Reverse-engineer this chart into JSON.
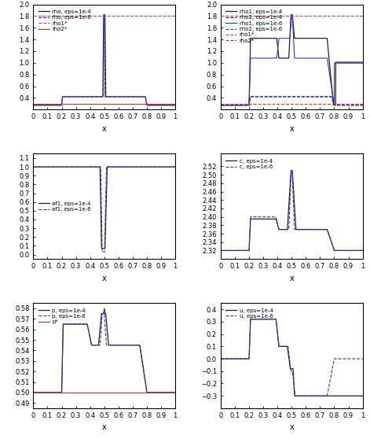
{
  "fig_width": 4.71,
  "fig_height": 5.58,
  "dpi": 100,
  "subplot_rows": 3,
  "subplot_cols": 2,
  "x_label": "x",
  "x_range": [
    0,
    1
  ],
  "panel1": {
    "ylabel": "",
    "ylim": [
      0.2,
      2.05
    ],
    "yticks": [
      0.4,
      0.6,
      0.8,
      1.0,
      1.2,
      1.4,
      1.6,
      1.8,
      2.0
    ],
    "legend": [
      "rho, eps=1e-4",
      "rho, eps=1e-6",
      "rho1*",
      "rho2*"
    ],
    "legend_colors": [
      "#333333",
      "#3333cc",
      "#cc3399",
      "#cc3333"
    ],
    "legend_styles": [
      "-",
      "--",
      "--",
      "-"
    ],
    "hlines": [
      1.8,
      0.3
    ],
    "hline_colors": [
      "#cc3399",
      "#cc3333"
    ],
    "hline_styles": [
      "--",
      "-"
    ]
  },
  "panel2": {
    "ylabel": "",
    "ylim": [
      0.2,
      2.05
    ],
    "yticks": [
      0.4,
      0.6,
      0.8,
      1.0,
      1.2,
      1.4,
      1.6,
      1.8,
      2.0
    ],
    "legend": [
      "rho1, eps=1e-4",
      "rho2, eps=1e-4",
      "rho1, eps=1e-6",
      "rho2, eps=1e-6",
      "rho1*",
      "rho2*"
    ],
    "legend_colors": [
      "#333333",
      "#333333",
      "#3333cc",
      "#3333cc",
      "#cc3399",
      "#cc3333"
    ],
    "legend_styles": [
      "-",
      "--",
      "-",
      "--",
      "--",
      "--"
    ],
    "hlines": [
      1.8,
      0.3
    ],
    "hline_colors": [
      "#cc3399",
      "#cc3333"
    ],
    "hline_styles": [
      "--",
      "--"
    ]
  },
  "panel3": {
    "ylabel": "",
    "ylim": [
      -0.05,
      1.15
    ],
    "yticks": [
      0.0,
      0.1,
      0.2,
      0.3,
      0.4,
      0.5,
      0.6,
      0.7,
      0.8,
      0.9,
      1.0,
      1.1
    ],
    "legend": [
      "af1, eps=1e-4",
      "af1, eps=1e-6"
    ],
    "legend_colors": [
      "#333333",
      "#3333cc"
    ],
    "legend_styles": [
      "-",
      "--"
    ]
  },
  "panel4": {
    "ylabel": "",
    "ylim": [
      2.3,
      2.55
    ],
    "yticks": [
      2.32,
      2.34,
      2.36,
      2.38,
      2.4,
      2.42,
      2.44,
      2.46,
      2.48,
      2.5,
      2.52
    ],
    "legend": [
      "c, eps=1e-4",
      "c, eps=1e-6"
    ],
    "legend_colors": [
      "#333333",
      "#3333cc"
    ],
    "legend_styles": [
      "-",
      "--"
    ]
  },
  "panel5": {
    "ylabel": "",
    "ylim": [
      0.485,
      0.585
    ],
    "yticks": [
      0.49,
      0.5,
      0.51,
      0.52,
      0.53,
      0.54,
      0.55,
      0.56,
      0.57,
      0.58
    ],
    "legend": [
      "p, eps=1e-4",
      "p, eps=1e-6",
      "p*"
    ],
    "legend_colors": [
      "#333333",
      "#3333cc",
      "#cc3333"
    ],
    "legend_styles": [
      "-",
      "--",
      "-"
    ],
    "hlines": [
      0.5
    ],
    "hline_colors": [
      "#cc3333"
    ],
    "hline_styles": [
      "-"
    ]
  },
  "panel6": {
    "ylabel": "",
    "ylim": [
      -0.4,
      0.45
    ],
    "yticks": [
      -0.3,
      -0.2,
      -0.1,
      0.0,
      0.1,
      0.2,
      0.3,
      0.4
    ],
    "legend": [
      "u, eps=1e-4",
      "u, eps=1e-6"
    ],
    "legend_colors": [
      "#333333",
      "#3333cc"
    ],
    "legend_styles": [
      "-",
      "--"
    ]
  },
  "colors": {
    "black": "#222222",
    "blue": "#3333cc",
    "pink": "#cc3399",
    "red": "#cc3333",
    "light_blue": "#aaaaee"
  },
  "xticks": [
    0,
    0.1,
    0.2,
    0.3,
    0.4,
    0.5,
    0.6,
    0.7,
    0.8,
    0.9,
    1.0
  ],
  "xtick_labels": [
    "0",
    "0.1",
    "0.2",
    "0.3",
    "0.4",
    "0.5",
    "0.6",
    "0.7",
    "0.8",
    "0.9",
    "1"
  ]
}
